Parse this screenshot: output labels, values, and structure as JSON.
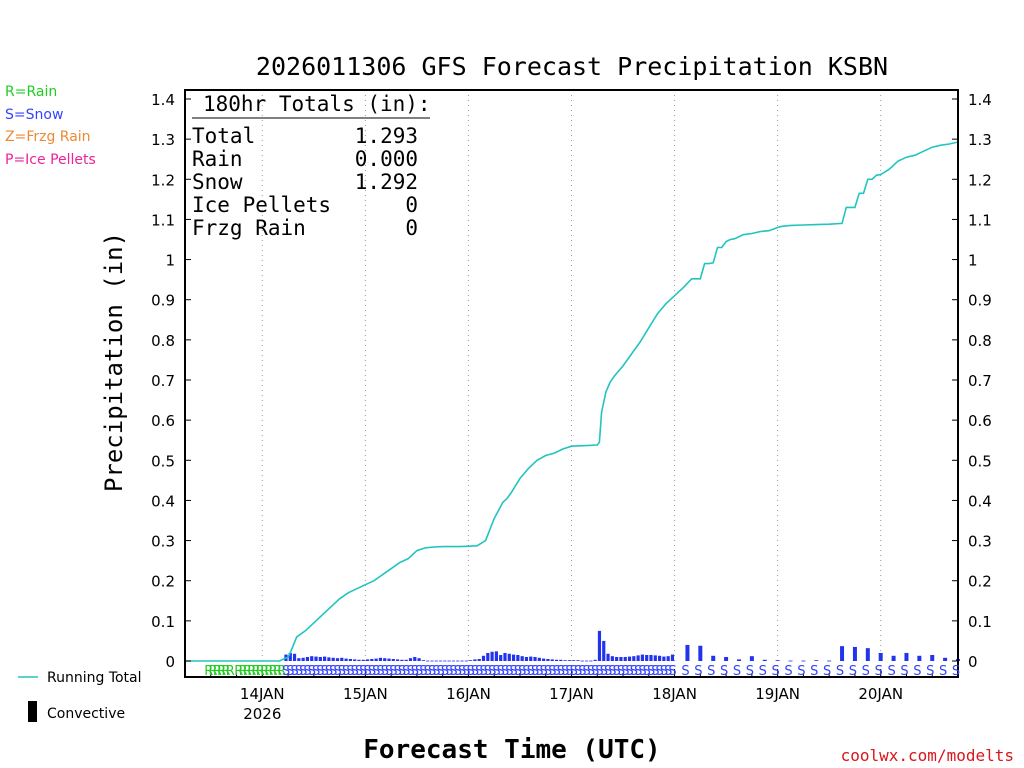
{
  "chart_data": {
    "type": "line",
    "title": "2026011306 GFS Forecast Precipitation KSBN",
    "ylabel": "Precipitation (in)",
    "xlabel": "Forecast Time (UTC)",
    "ylim": [
      0,
      1.4
    ],
    "xlim_hours": [
      0,
      180
    ],
    "yticks": [
      "0",
      "0.1",
      "0.2",
      "0.3",
      "0.4",
      "0.5",
      "0.6",
      "0.7",
      "0.8",
      "0.9",
      "1",
      "1.1",
      "1.2",
      "1.3",
      "1.4"
    ],
    "xticks": [
      {
        "hour": 18,
        "label": "14JAN",
        "sublabel": "2026"
      },
      {
        "hour": 42,
        "label": "15JAN",
        "sublabel": ""
      },
      {
        "hour": 66,
        "label": "16JAN",
        "sublabel": ""
      },
      {
        "hour": 90,
        "label": "17JAN",
        "sublabel": ""
      },
      {
        "hour": 114,
        "label": "18JAN",
        "sublabel": ""
      },
      {
        "hour": 138,
        "label": "19JAN",
        "sublabel": ""
      },
      {
        "hour": 162,
        "label": "20JAN",
        "sublabel": ""
      }
    ],
    "precip_type_legend": [
      {
        "label": "R=Rain",
        "color": "#22cc22"
      },
      {
        "label": "S=Snow",
        "color": "#3344ff"
      },
      {
        "label": "Z=Frzg Rain",
        "color": "#ee8833"
      },
      {
        "label": "P=Ice Pellets",
        "color": "#ee2299"
      }
    ],
    "series_legend": [
      {
        "label": "Running Total",
        "color": "#22c4c0",
        "kind": "line"
      },
      {
        "label": "Convective",
        "color": "#000000",
        "kind": "bar"
      }
    ],
    "totals_box": {
      "header": "180hr Totals (in):",
      "rows": [
        {
          "label": "Total",
          "value": "1.293"
        },
        {
          "label": "Rain",
          "value": "0.000"
        },
        {
          "label": "Snow",
          "value": "1.292"
        },
        {
          "label": "Ice Pellets",
          "value": "0"
        },
        {
          "label": "Frzg Rain",
          "value": "0"
        }
      ]
    },
    "running_total": {
      "name": "Running Total",
      "x": [
        0,
        22,
        24,
        24.5,
        26,
        28,
        30,
        32,
        34,
        36,
        38,
        40,
        42,
        44,
        46,
        48,
        50,
        52,
        54,
        56,
        58,
        60,
        62,
        64,
        66,
        68,
        70,
        72,
        73,
        74,
        75,
        76,
        78,
        80,
        82,
        84,
        86,
        88,
        90,
        92,
        94,
        96,
        96.5,
        97,
        98,
        99,
        100,
        102,
        104,
        106,
        108,
        110,
        112,
        114,
        116,
        118,
        120,
        121,
        122,
        123,
        124,
        125,
        126,
        127,
        128,
        130,
        132,
        134,
        136,
        138,
        139,
        141,
        144,
        147,
        150,
        153,
        154,
        155,
        156,
        157,
        158,
        159,
        160,
        161,
        162,
        164,
        166,
        168,
        170,
        172,
        174,
        176,
        178,
        180
      ],
      "values": [
        0,
        0,
        0.01,
        0.02,
        0.06,
        0.075,
        0.095,
        0.115,
        0.135,
        0.155,
        0.17,
        0.18,
        0.19,
        0.2,
        0.215,
        0.23,
        0.245,
        0.255,
        0.275,
        0.282,
        0.284,
        0.285,
        0.285,
        0.285,
        0.286,
        0.287,
        0.3,
        0.355,
        0.375,
        0.395,
        0.405,
        0.42,
        0.455,
        0.48,
        0.5,
        0.512,
        0.518,
        0.528,
        0.535,
        0.536,
        0.537,
        0.538,
        0.545,
        0.62,
        0.67,
        0.695,
        0.71,
        0.735,
        0.765,
        0.795,
        0.83,
        0.865,
        0.89,
        0.91,
        0.93,
        0.952,
        0.952,
        0.99,
        0.99,
        0.992,
        1.03,
        1.03,
        1.045,
        1.05,
        1.052,
        1.062,
        1.065,
        1.07,
        1.072,
        1.08,
        1.083,
        1.085,
        1.086,
        1.087,
        1.088,
        1.09,
        1.13,
        1.13,
        1.13,
        1.165,
        1.165,
        1.2,
        1.2,
        1.21,
        1.212,
        1.225,
        1.245,
        1.255,
        1.26,
        1.27,
        1.28,
        1.285,
        1.288,
        1.293
      ]
    },
    "period_precip": {
      "name": "Snow",
      "x": [
        24,
        25,
        26,
        27,
        28,
        29,
        30,
        31,
        32,
        33,
        34,
        35,
        36,
        37,
        38,
        39,
        40,
        41,
        42,
        43,
        44,
        45,
        46,
        47,
        48,
        49,
        50,
        51,
        52,
        53,
        54,
        55,
        56,
        57,
        58,
        59,
        60,
        61,
        62,
        63,
        64,
        65,
        66,
        67,
        68,
        69,
        70,
        71,
        72,
        73,
        74,
        75,
        76,
        77,
        78,
        79,
        80,
        81,
        82,
        83,
        84,
        85,
        86,
        87,
        88,
        89,
        90,
        91,
        92,
        93,
        94,
        95,
        96,
        97,
        98,
        99,
        100,
        101,
        102,
        103,
        104,
        105,
        106,
        107,
        108,
        109,
        110,
        111,
        112,
        113,
        114,
        117,
        120,
        123,
        126,
        129,
        132,
        135,
        138,
        141,
        144,
        147,
        150,
        153,
        156,
        159,
        162,
        165,
        168,
        171,
        174,
        177,
        180
      ],
      "values": [
        0.016,
        0.02,
        0.018,
        0.007,
        0.008,
        0.01,
        0.012,
        0.011,
        0.01,
        0.011,
        0.009,
        0.008,
        0.007,
        0.008,
        0.006,
        0.005,
        0.004,
        0.003,
        0.003,
        0.004,
        0.005,
        0.006,
        0.008,
        0.007,
        0.006,
        0.005,
        0.004,
        0.003,
        0.003,
        0.007,
        0.01,
        0.007,
        0.002,
        0.001,
        0.001,
        0.001,
        0.001,
        0.001,
        0.001,
        0.001,
        0.001,
        0.001,
        0.001,
        0.002,
        0.004,
        0.005,
        0.013,
        0.02,
        0.023,
        0.024,
        0.015,
        0.02,
        0.018,
        0.016,
        0.015,
        0.012,
        0.01,
        0.011,
        0.01,
        0.008,
        0.006,
        0.005,
        0.004,
        0.003,
        0.003,
        0.002,
        0.002,
        0.002,
        0.002,
        0.001,
        0.001,
        0.001,
        0.003,
        0.075,
        0.05,
        0.018,
        0.012,
        0.01,
        0.01,
        0.01,
        0.011,
        0.012,
        0.014,
        0.016,
        0.015,
        0.015,
        0.014,
        0.013,
        0.011,
        0.012,
        0.016,
        0.04,
        0.038,
        0.013,
        0.01,
        0.004,
        0.012,
        0.003,
        0.002,
        0.001,
        0.001,
        0.002,
        0.001,
        0.037,
        0.035,
        0.032,
        0.02,
        0.013,
        0.02,
        0.013,
        0.015,
        0.008,
        0.005
      ]
    },
    "type_markers": {
      "rain": {
        "label": "R",
        "hours": [
          6,
          7,
          8,
          9,
          10,
          11,
          13,
          14,
          15,
          16,
          17,
          18,
          19,
          20,
          21,
          22,
          23
        ]
      },
      "snow": {
        "label": "S",
        "hours": [
          24,
          25,
          26,
          27,
          28,
          29,
          30,
          31,
          32,
          33,
          34,
          35,
          36,
          37,
          38,
          39,
          40,
          41,
          42,
          43,
          44,
          45,
          46,
          47,
          48,
          49,
          50,
          51,
          52,
          53,
          54,
          55,
          56,
          57,
          58,
          59,
          60,
          61,
          62,
          63,
          64,
          65,
          66,
          67,
          68,
          69,
          70,
          71,
          72,
          73,
          74,
          75,
          76,
          77,
          78,
          79,
          80,
          81,
          82,
          83,
          84,
          85,
          86,
          87,
          88,
          89,
          90,
          91,
          92,
          93,
          94,
          95,
          96,
          97,
          98,
          99,
          100,
          101,
          102,
          103,
          104,
          105,
          106,
          107,
          108,
          109,
          110,
          111,
          112,
          113,
          114,
          117,
          120,
          123,
          126,
          129,
          132,
          135,
          138,
          141,
          144,
          147,
          150,
          153,
          156,
          159,
          162,
          165,
          168,
          171,
          174,
          177,
          180
        ]
      }
    },
    "legend": "left",
    "grid": "vertical dotted at day boundaries"
  },
  "credit": "coolwx.com/modelts"
}
